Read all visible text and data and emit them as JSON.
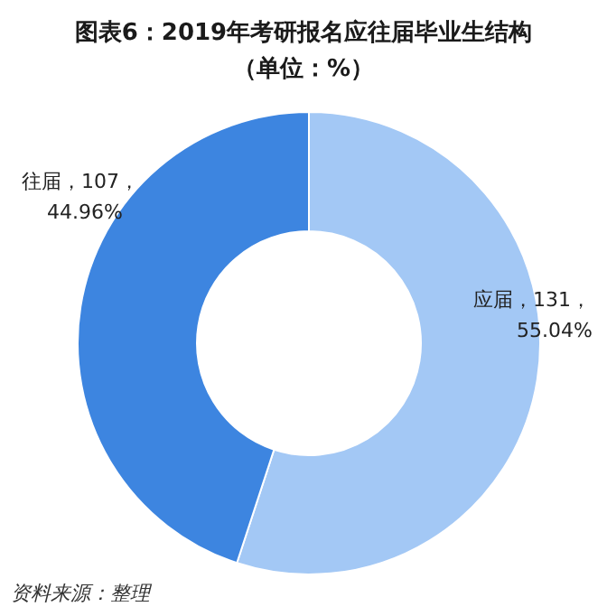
{
  "chart_data": {
    "type": "donut",
    "title": "图表6：2019年考研报名应往届毕业生结构",
    "subtitle": "（单位：%）",
    "categories": [
      "应届",
      "往届"
    ],
    "values": [
      55.04,
      44.96
    ],
    "value_labels": [
      "，131，\n55.04%",
      "，107，\n44.96%"
    ],
    "colors": [
      "#a3c8f5",
      "#3d85e0"
    ],
    "annotations": [
      "资料来源：整理"
    ]
  }
}
